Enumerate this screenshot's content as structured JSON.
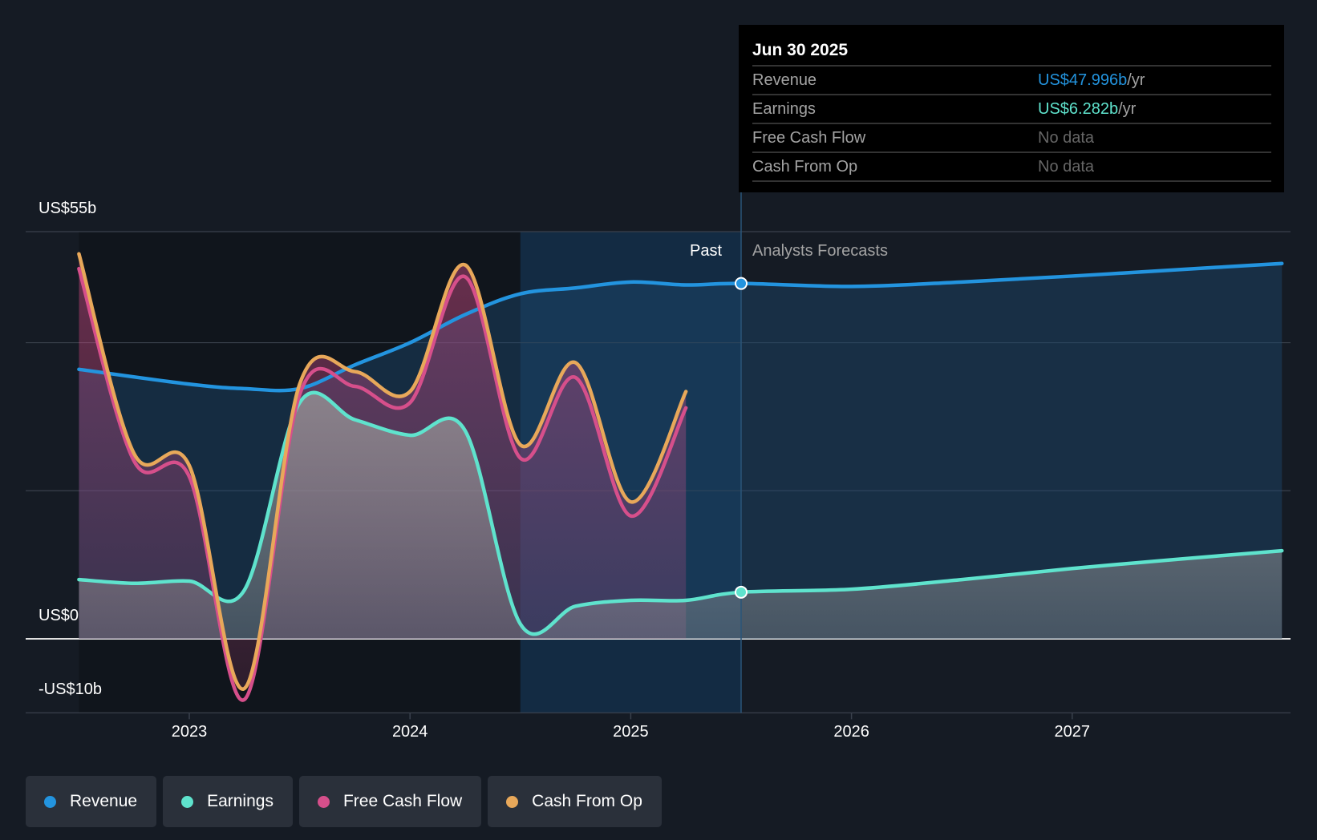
{
  "tooltip": {
    "date": "Jun 30 2025",
    "rows": [
      {
        "label": "Revenue",
        "value": "US$47.996b",
        "unit": " /yr",
        "color": "#2394df"
      },
      {
        "label": "Earnings",
        "value": "US$6.282b",
        "unit": " /yr",
        "color": "#5fe3cd"
      },
      {
        "label": "Free Cash Flow",
        "value": "No data"
      },
      {
        "label": "Cash From Op",
        "value": "No data"
      }
    ]
  },
  "region_labels": {
    "past": "Past",
    "forecast": "Analysts Forecasts"
  },
  "legend": [
    {
      "label": "Revenue",
      "color": "#2394df"
    },
    {
      "label": "Earnings",
      "color": "#5fe3cd"
    },
    {
      "label": "Free Cash Flow",
      "color": "#d64f8b"
    },
    {
      "label": "Cash From Op",
      "color": "#e8a85a"
    }
  ],
  "chart_data": {
    "type": "line",
    "ylim": [
      -10,
      55
    ],
    "xlim": [
      2022.35,
      2027.95
    ],
    "yticks": [
      {
        "v": 55,
        "label": "US$55b"
      },
      {
        "v": 0,
        "label": "US$0"
      },
      {
        "v": -10,
        "label": "-US$10b"
      }
    ],
    "gridlines": [
      55,
      40,
      20,
      0,
      -10
    ],
    "xticks": [
      {
        "v": 2023,
        "label": "2023"
      },
      {
        "v": 2024,
        "label": "2024"
      },
      {
        "v": 2025,
        "label": "2025"
      },
      {
        "v": 2026,
        "label": "2026"
      },
      {
        "v": 2027,
        "label": "2027"
      }
    ],
    "today": 2025.5,
    "highlight_start": 2024.5,
    "series": [
      {
        "name": "Revenue",
        "color": "#2394df",
        "x": [
          2022.5,
          2023.0,
          2023.25,
          2023.5,
          2023.75,
          2024.0,
          2024.25,
          2024.5,
          2024.75,
          2025.0,
          2025.25,
          2025.5,
          2026.0,
          2026.5,
          2027.0,
          2027.5,
          2027.95
        ],
        "y": [
          36.4,
          34.4,
          33.8,
          33.8,
          37,
          40,
          43.8,
          46.6,
          47.4,
          48.2,
          47.8,
          48.0,
          47.6,
          48.2,
          49,
          49.9,
          50.7
        ]
      },
      {
        "name": "Earnings",
        "color": "#5fe3cd",
        "x": [
          2022.5,
          2022.75,
          2023.0,
          2023.25,
          2023.5,
          2023.75,
          2024.0,
          2024.25,
          2024.5,
          2024.75,
          2025.0,
          2025.25,
          2025.5,
          2026.0,
          2026.5,
          2027.0,
          2027.5,
          2027.95
        ],
        "y": [
          8.0,
          7.5,
          7.8,
          6.6,
          31.9,
          29.6,
          27.5,
          28.1,
          2.0,
          4.4,
          5.2,
          5.2,
          6.3,
          6.7,
          8.0,
          9.5,
          10.8,
          11.9
        ]
      },
      {
        "name": "Free Cash Flow",
        "color": "#d64f8b",
        "x": [
          2022.5,
          2022.75,
          2023.0,
          2023.25,
          2023.5,
          2023.75,
          2024.0,
          2024.25,
          2024.5,
          2024.75,
          2025.0,
          2025.25
        ],
        "y": [
          50,
          24,
          21.9,
          -8.2,
          33,
          34.1,
          31.9,
          48.9,
          24.4,
          35.3,
          16.6,
          31.2
        ]
      },
      {
        "name": "Cash From Op",
        "color": "#e8a85a",
        "x": [
          2022.5,
          2022.75,
          2023.0,
          2023.25,
          2023.5,
          2023.75,
          2024.0,
          2024.25,
          2024.5,
          2024.75,
          2025.0,
          2025.25
        ],
        "y": [
          52,
          25,
          23.4,
          -6.7,
          34.4,
          36.1,
          33.4,
          50.5,
          26.2,
          37.3,
          18.5,
          33.4
        ]
      }
    ]
  }
}
